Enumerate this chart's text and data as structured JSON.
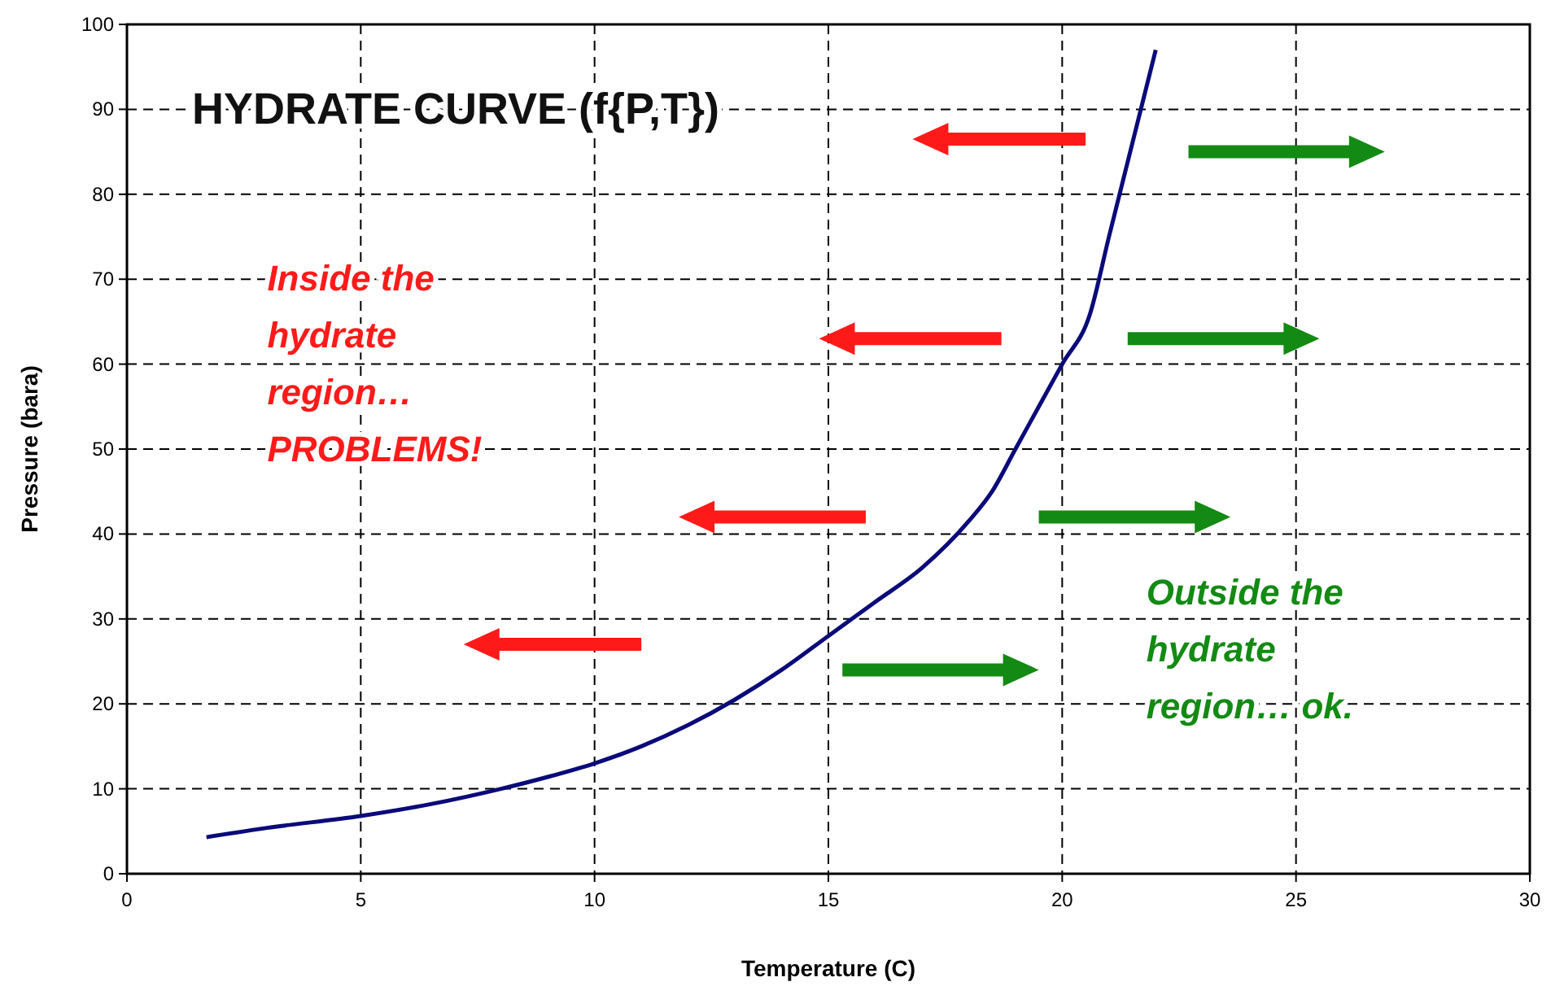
{
  "chart_data": {
    "type": "line",
    "title": "HYDRATE CURVE (f{P,T})",
    "xlabel": "Temperature (C)",
    "ylabel": "Pressure (bara)",
    "x": [
      1.7,
      3,
      5,
      6.5,
      8,
      9,
      10,
      11,
      12,
      13,
      14,
      15,
      16,
      17,
      18,
      18.5,
      19,
      19.5,
      20,
      20.6,
      21,
      21.5,
      22
    ],
    "series": [
      {
        "color": "#0a0a7a",
        "values": [
          4.3,
          5.4,
          6.8,
          8.2,
          10,
          11.4,
          13,
          15,
          17.5,
          20.5,
          24,
          28,
          32,
          36,
          41.5,
          45,
          50,
          55,
          60,
          66,
          75,
          86,
          97
        ]
      }
    ],
    "xlim": [
      0,
      30
    ],
    "xticks": [
      0,
      5,
      10,
      15,
      20,
      25,
      30
    ],
    "ylim": [
      0,
      100
    ],
    "yticks": [
      0,
      10,
      20,
      30,
      40,
      50,
      60,
      70,
      80,
      90,
      100
    ],
    "grid": true,
    "marker": "none",
    "line_style": "solid",
    "annotations": [
      "Inside the hydrate region… PROBLEMS!",
      "Outside the hydrate region… ok."
    ]
  }
}
